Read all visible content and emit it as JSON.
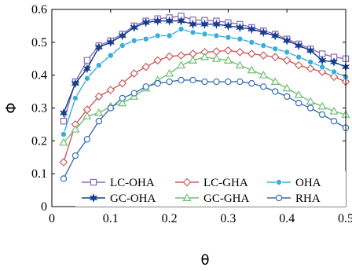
{
  "chart_data": {
    "type": "line",
    "xlabel": "θ",
    "ylabel": "Φ",
    "xlim": [
      0,
      0.5
    ],
    "ylim": [
      0,
      0.6
    ],
    "xticks": [
      0,
      0.1,
      0.2,
      0.3,
      0.4,
      0.5
    ],
    "xtick_labels": [
      "0",
      "0.1",
      "0.2",
      "0.3",
      "0.4",
      "0.5"
    ],
    "yticks": [
      0,
      0.1,
      0.2,
      0.3,
      0.4,
      0.5,
      0.6
    ],
    "ytick_labels": [
      "0",
      "0.1",
      "0.2",
      "0.3",
      "0.4",
      "0.5",
      "0.6"
    ],
    "grid": false,
    "legend_position": "bottom",
    "x": [
      0.02,
      0.04,
      0.06,
      0.08,
      0.1,
      0.12,
      0.14,
      0.16,
      0.18,
      0.2,
      0.22,
      0.24,
      0.26,
      0.28,
      0.3,
      0.32,
      0.34,
      0.36,
      0.38,
      0.4,
      0.42,
      0.44,
      0.46,
      0.48,
      0.5
    ],
    "series": [
      {
        "name": "LC-OHA",
        "color": "#8b6ab8",
        "marker": "square",
        "values": [
          0.26,
          0.38,
          0.445,
          0.49,
          0.505,
          0.525,
          0.55,
          0.565,
          0.572,
          0.575,
          0.58,
          0.568,
          0.567,
          0.565,
          0.56,
          0.555,
          0.545,
          0.535,
          0.525,
          0.51,
          0.495,
          0.48,
          0.465,
          0.455,
          0.45
        ]
      },
      {
        "name": "LC-GHA",
        "color": "#cd5c5c",
        "marker": "diamond",
        "values": [
          0.135,
          0.25,
          0.295,
          0.335,
          0.355,
          0.375,
          0.405,
          0.425,
          0.445,
          0.457,
          0.46,
          0.465,
          0.47,
          0.472,
          0.475,
          0.47,
          0.465,
          0.46,
          0.455,
          0.445,
          0.43,
          0.42,
          0.41,
          0.395,
          0.38
        ]
      },
      {
        "name": "OHA",
        "color": "#3aaed8",
        "marker": "circle-filled",
        "values": [
          0.22,
          0.33,
          0.39,
          0.43,
          0.46,
          0.49,
          0.505,
          0.51,
          0.52,
          0.52,
          0.54,
          0.53,
          0.525,
          0.52,
          0.515,
          0.51,
          0.5,
          0.49,
          0.48,
          0.47,
          0.455,
          0.44,
          0.425,
          0.41,
          0.395
        ]
      },
      {
        "name": "GC-OHA",
        "color": "#143f8c",
        "marker": "star",
        "values": [
          0.285,
          0.375,
          0.42,
          0.485,
          0.5,
          0.52,
          0.545,
          0.56,
          0.565,
          0.565,
          0.565,
          0.555,
          0.555,
          0.555,
          0.55,
          0.545,
          0.54,
          0.53,
          0.52,
          0.505,
          0.49,
          0.475,
          0.445,
          0.44,
          0.425
        ]
      },
      {
        "name": "GC-GHA",
        "color": "#6fbf73",
        "marker": "triangle",
        "values": [
          0.195,
          0.235,
          0.275,
          0.285,
          0.305,
          0.315,
          0.335,
          0.36,
          0.385,
          0.405,
          0.43,
          0.445,
          0.455,
          0.45,
          0.445,
          0.43,
          0.415,
          0.4,
          0.38,
          0.36,
          0.34,
          0.32,
          0.305,
          0.29,
          0.28
        ]
      },
      {
        "name": "RHA",
        "color": "#3a6fb0",
        "marker": "circle-open",
        "values": [
          0.085,
          0.155,
          0.205,
          0.26,
          0.3,
          0.33,
          0.345,
          0.365,
          0.375,
          0.38,
          0.385,
          0.385,
          0.38,
          0.38,
          0.38,
          0.38,
          0.375,
          0.365,
          0.35,
          0.335,
          0.315,
          0.3,
          0.28,
          0.26,
          0.24
        ]
      }
    ]
  }
}
